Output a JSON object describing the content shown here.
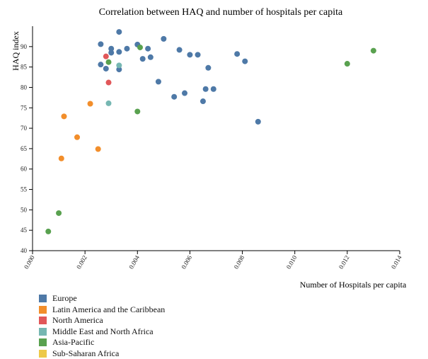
{
  "chart_data": {
    "type": "scatter",
    "title": "Correlation between HAQ and number of hospitals per capita",
    "xlabel": "Number of Hospitals per capita",
    "ylabel": "HAQ index",
    "xlim": [
      0,
      0.014
    ],
    "ylim": [
      40,
      95
    ],
    "x_ticks": [
      "0.000",
      "0.002",
      "0.004",
      "0.006",
      "0.008",
      "0.010",
      "0.012",
      "0.014"
    ],
    "y_ticks": [
      "40",
      "45",
      "50",
      "55",
      "60",
      "65",
      "70",
      "75",
      "80",
      "85",
      "90"
    ],
    "grid": false,
    "legend_position": "bottom-left",
    "series": [
      {
        "name": "Europe",
        "color": "#4e79a7",
        "points": [
          {
            "x": 0.0033,
            "y": 93.6
          },
          {
            "x": 0.005,
            "y": 91.9
          },
          {
            "x": 0.0026,
            "y": 90.6
          },
          {
            "x": 0.004,
            "y": 90.5
          },
          {
            "x": 0.003,
            "y": 89.5
          },
          {
            "x": 0.0036,
            "y": 89.5
          },
          {
            "x": 0.0044,
            "y": 89.5
          },
          {
            "x": 0.0056,
            "y": 89.2
          },
          {
            "x": 0.0033,
            "y": 88.7
          },
          {
            "x": 0.003,
            "y": 88.5
          },
          {
            "x": 0.0078,
            "y": 88.2
          },
          {
            "x": 0.006,
            "y": 88.0
          },
          {
            "x": 0.0063,
            "y": 88.0
          },
          {
            "x": 0.0045,
            "y": 87.4
          },
          {
            "x": 0.0042,
            "y": 87.0
          },
          {
            "x": 0.0081,
            "y": 86.4
          },
          {
            "x": 0.0026,
            "y": 85.6
          },
          {
            "x": 0.0028,
            "y": 84.6
          },
          {
            "x": 0.0033,
            "y": 84.4
          },
          {
            "x": 0.0067,
            "y": 84.8
          },
          {
            "x": 0.0048,
            "y": 81.4
          },
          {
            "x": 0.0066,
            "y": 79.6
          },
          {
            "x": 0.0069,
            "y": 79.6
          },
          {
            "x": 0.0058,
            "y": 78.6
          },
          {
            "x": 0.0054,
            "y": 77.7
          },
          {
            "x": 0.0065,
            "y": 76.6
          },
          {
            "x": 0.0086,
            "y": 71.6
          }
        ]
      },
      {
        "name": "Latin America and the Caribbean",
        "color": "#f28e2b",
        "points": [
          {
            "x": 0.0022,
            "y": 76.0
          },
          {
            "x": 0.0012,
            "y": 72.9
          },
          {
            "x": 0.0017,
            "y": 67.8
          },
          {
            "x": 0.0025,
            "y": 64.9
          },
          {
            "x": 0.0011,
            "y": 62.6
          }
        ]
      },
      {
        "name": "North America",
        "color": "#e15759",
        "points": [
          {
            "x": 0.0028,
            "y": 87.6
          },
          {
            "x": 0.0029,
            "y": 81.2
          }
        ]
      },
      {
        "name": "Middle East and North Africa",
        "color": "#76b7b2",
        "points": [
          {
            "x": 0.0033,
            "y": 85.4
          },
          {
            "x": 0.0029,
            "y": 76.1
          }
        ]
      },
      {
        "name": "Asia-Pacific",
        "color": "#59a14f",
        "points": [
          {
            "x": 0.0041,
            "y": 89.8
          },
          {
            "x": 0.0029,
            "y": 86.2
          },
          {
            "x": 0.013,
            "y": 89.0
          },
          {
            "x": 0.012,
            "y": 85.8
          },
          {
            "x": 0.004,
            "y": 74.1
          },
          {
            "x": 0.001,
            "y": 49.2
          },
          {
            "x": 0.0006,
            "y": 44.7
          }
        ]
      },
      {
        "name": "Sub-Saharan Africa",
        "color": "#edc948",
        "points": []
      }
    ]
  }
}
